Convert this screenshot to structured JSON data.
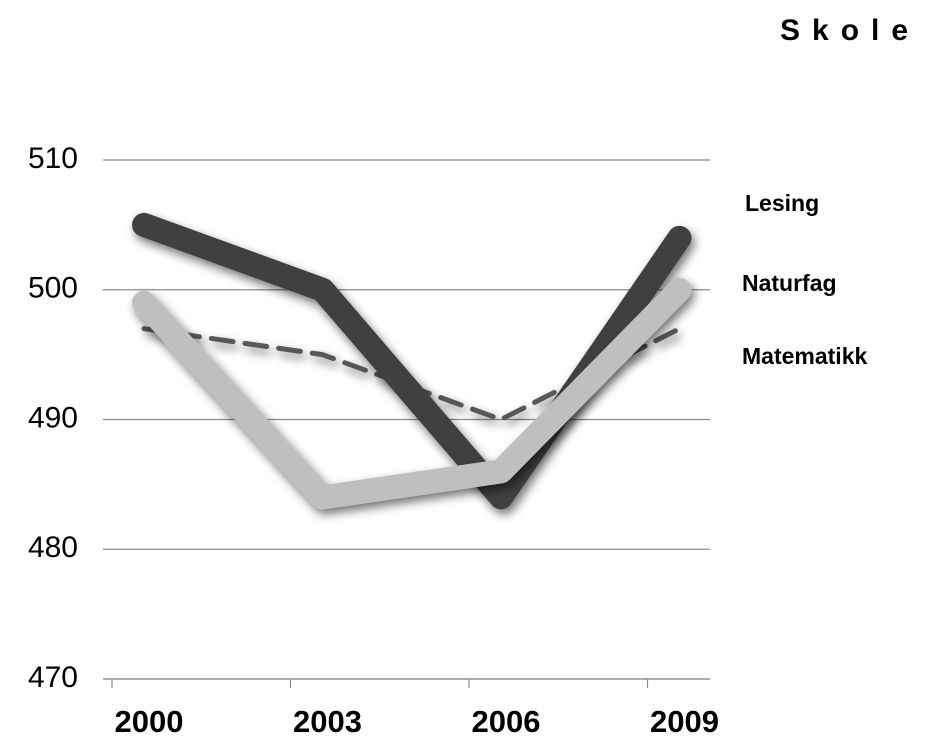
{
  "chart_data": {
    "type": "line",
    "title": "Skole",
    "categories": [
      "2000",
      "2003",
      "2006",
      "2009"
    ],
    "series": [
      {
        "name": "Lesing",
        "color": "#404040",
        "style": "solid",
        "values": [
          505,
          500,
          484,
          504
        ]
      },
      {
        "name": "Naturfag",
        "color": "#bfbfbf",
        "style": "solid",
        "values": [
          499,
          484,
          486,
          500
        ]
      },
      {
        "name": "Matematikk",
        "color": "#595959",
        "style": "dashed",
        "values": [
          497,
          495,
          490,
          497
        ]
      }
    ],
    "ylim": [
      470,
      510
    ],
    "yticks": [
      470,
      480,
      490,
      500,
      510
    ],
    "grid": true
  }
}
